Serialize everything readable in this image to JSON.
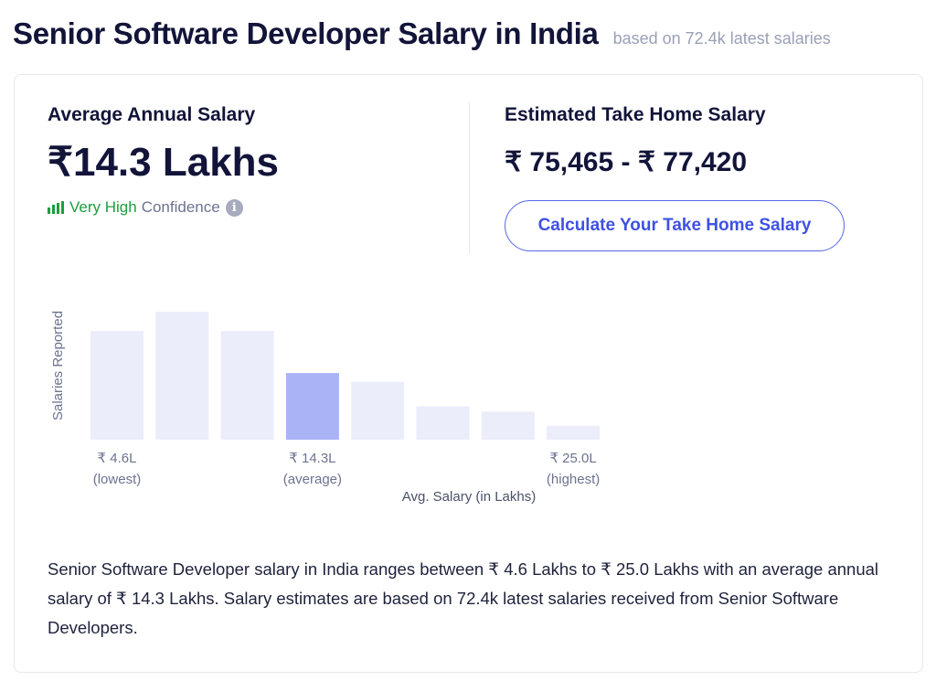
{
  "header": {
    "title": "Senior Software Developer Salary in India",
    "subtitle": "based on 72.4k latest salaries"
  },
  "average": {
    "label": "Average Annual Salary",
    "value": "₹14.3 Lakhs",
    "confidence_level": "Very High",
    "confidence_word": "Confidence",
    "confidence_color": "#1f9d3e",
    "info_icon": "i"
  },
  "take_home": {
    "label": "Estimated Take Home Salary",
    "range": "₹ 75,465 - ₹ 77,420",
    "button_label": "Calculate Your Take Home Salary"
  },
  "chart_data": {
    "type": "bar",
    "ylabel": "Salaries Reported",
    "xlabel": "Avg. Salary (in Lakhs)",
    "values": [
      62,
      73,
      62,
      38,
      33,
      19,
      16,
      8
    ],
    "highlight_index": 3,
    "colors": {
      "bar": "#ebedfb",
      "highlight": "#a9b3f6",
      "label": "#6c7390"
    },
    "tick_labels": [
      {
        "index": 0,
        "value": "₹ 4.6L",
        "note": "(lowest)"
      },
      {
        "index": 3,
        "value": "₹ 14.3L",
        "note": "(average)"
      },
      {
        "index": 7,
        "value": "₹ 25.0L",
        "note": "(highest)"
      }
    ]
  },
  "summary": "Senior Software Developer salary in India ranges between ₹ 4.6 Lakhs to ₹ 25.0 Lakhs with an average annual salary of ₹ 14.3 Lakhs. Salary estimates are based on 72.4k latest salaries received from Senior Software Developers."
}
